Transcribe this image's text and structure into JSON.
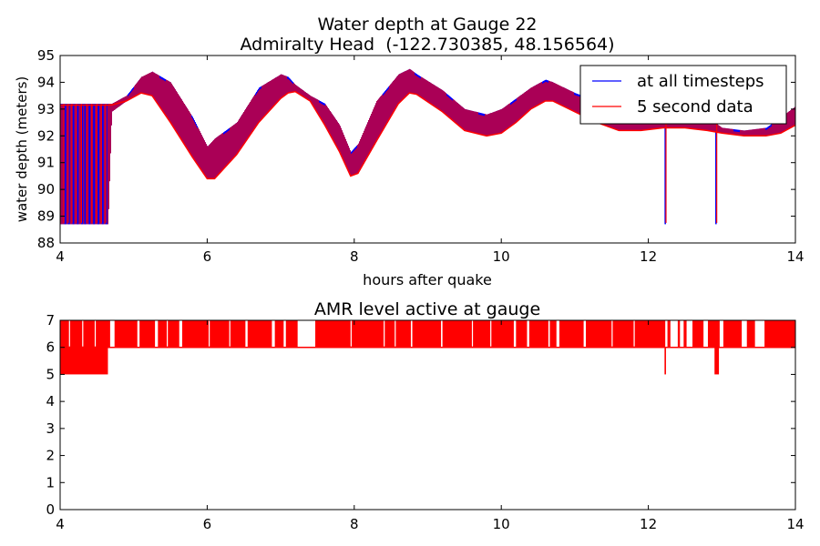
{
  "chart_data": [
    {
      "type": "line",
      "title": "Water depth at Gauge 22",
      "subtitle": "Admiralty Head  (-122.730385, 48.156564)",
      "xlabel": "hours after quake",
      "ylabel": "water depth (meters)",
      "xlim": [
        4,
        14
      ],
      "ylim": [
        88,
        95
      ],
      "xticks": [
        4,
        6,
        8,
        10,
        12,
        14
      ],
      "yticks": [
        88,
        89,
        90,
        91,
        92,
        93,
        94,
        95
      ],
      "grid": false,
      "legend_position": "top-right",
      "colors": {
        "all": "#0000ff",
        "five": "#ff0000"
      },
      "series": [
        {
          "name": "at all timesteps",
          "color": "#0000ff",
          "band": {
            "x": [
              4.0,
              4.65,
              4.7,
              4.9,
              5.1,
              5.25,
              5.5,
              5.8,
              6.0,
              6.1,
              6.4,
              6.7,
              7.0,
              7.1,
              7.2,
              7.4,
              7.6,
              7.8,
              7.95,
              8.05,
              8.3,
              8.6,
              8.75,
              8.85,
              9.2,
              9.5,
              9.8,
              10.0,
              10.2,
              10.4,
              10.6,
              10.7,
              11.0,
              11.3,
              11.6,
              11.9,
              12.2,
              12.5,
              12.8,
              13.0,
              13.3,
              13.6,
              13.8,
              14.0
            ],
            "low": [
              88.7,
              88.7,
              92.9,
              93.3,
              93.6,
              93.5,
              92.5,
              91.2,
              90.4,
              90.4,
              91.3,
              92.5,
              93.4,
              93.6,
              93.65,
              93.3,
              92.4,
              91.4,
              90.5,
              90.6,
              91.8,
              93.2,
              93.6,
              93.55,
              92.9,
              92.2,
              92.0,
              92.1,
              92.5,
              93.0,
              93.3,
              93.3,
              92.9,
              92.5,
              92.2,
              92.2,
              92.3,
              92.3,
              92.2,
              92.1,
              92.0,
              92.0,
              92.1,
              92.4
            ],
            "high": [
              93.2,
              93.2,
              93.2,
              93.5,
              94.2,
              94.4,
              94.0,
              92.7,
              91.6,
              91.9,
              92.5,
              93.8,
              94.3,
              94.2,
              93.9,
              93.5,
              93.2,
              92.4,
              91.4,
              91.7,
              93.3,
              94.3,
              94.5,
              94.3,
              93.7,
              93.0,
              92.8,
              93.0,
              93.4,
              93.8,
              94.1,
              94.0,
              93.6,
              93.3,
              92.8,
              92.6,
              92.5,
              92.7,
              92.7,
              92.3,
              92.2,
              92.3,
              92.7,
              93.1
            ]
          },
          "spikes": [
            4.07,
            4.12,
            4.18,
            4.24,
            4.3,
            4.34,
            4.4,
            4.46,
            4.52,
            4.58,
            4.63,
            12.23,
            12.92
          ]
        },
        {
          "name": "5 second data",
          "color": "#ff0000",
          "base": {
            "x": [
              4.0,
              4.65,
              4.7,
              4.9,
              5.1,
              5.25,
              5.5,
              5.8,
              6.0,
              6.1,
              6.4,
              6.7,
              7.0,
              7.1,
              7.2,
              7.4,
              7.6,
              7.8,
              7.95,
              8.05,
              8.3,
              8.6,
              8.75,
              8.85,
              9.2,
              9.5,
              9.8,
              10.0,
              10.2,
              10.4,
              10.6,
              10.7,
              11.0,
              11.3,
              11.6,
              11.9,
              12.2,
              12.5,
              12.8,
              13.0,
              13.3,
              13.6,
              13.8,
              14.0
            ],
            "y": [
              93.15,
              93.15,
              93.15,
              93.3,
              93.6,
              93.5,
              92.5,
              91.2,
              90.4,
              90.4,
              91.3,
              92.5,
              93.4,
              93.6,
              93.65,
              93.3,
              92.4,
              91.4,
              90.5,
              90.6,
              91.8,
              93.2,
              93.6,
              93.55,
              92.9,
              92.2,
              92.0,
              92.1,
              92.5,
              93.0,
              93.3,
              93.3,
              92.9,
              92.5,
              92.2,
              92.2,
              92.3,
              92.3,
              92.2,
              92.1,
              92.0,
              92.0,
              92.1,
              92.4
            ]
          },
          "spikes": [
            4.05,
            4.11,
            4.16,
            4.22,
            4.29,
            4.36,
            4.43,
            4.5,
            4.56,
            4.62,
            12.24,
            12.93
          ]
        }
      ]
    },
    {
      "type": "area",
      "title": "AMR level active at gauge",
      "xlabel": "",
      "ylabel": "",
      "xlim": [
        4,
        14
      ],
      "ylim": [
        0,
        7
      ],
      "xticks": [
        4,
        6,
        8,
        10,
        12,
        14
      ],
      "yticks": [
        0,
        1,
        2,
        3,
        4,
        5,
        6,
        7
      ],
      "grid": false,
      "color": "#ff0000",
      "floor_segments": [
        {
          "x0": 4.0,
          "x1": 4.65,
          "level": 5
        },
        {
          "x0": 4.65,
          "x1": 14.0,
          "level": 6
        },
        {
          "x0": 12.22,
          "x1": 12.24,
          "level": 5
        },
        {
          "x0": 12.9,
          "x1": 12.96,
          "level": 5
        }
      ],
      "level7_intervals": [
        [
          4.0,
          4.68
        ],
        [
          4.74,
          5.05
        ],
        [
          5.08,
          5.29
        ],
        [
          5.33,
          5.62
        ],
        [
          5.66,
          6.52
        ],
        [
          6.55,
          6.88
        ],
        [
          6.92,
          7.04
        ],
        [
          7.07,
          7.23
        ],
        [
          7.47,
          8.77
        ],
        [
          8.79,
          9.18
        ],
        [
          9.2,
          10.17
        ],
        [
          10.2,
          10.35
        ],
        [
          10.38,
          10.64
        ],
        [
          10.66,
          10.75
        ],
        [
          10.79,
          11.12
        ],
        [
          11.15,
          12.23
        ],
        [
          12.26,
          12.3
        ],
        [
          12.4,
          12.43
        ],
        [
          12.48,
          12.52
        ],
        [
          12.6,
          12.75
        ],
        [
          12.81,
          12.97
        ],
        [
          13.02,
          13.27
        ],
        [
          13.34,
          13.45
        ],
        [
          13.58,
          14.0
        ]
      ]
    }
  ]
}
